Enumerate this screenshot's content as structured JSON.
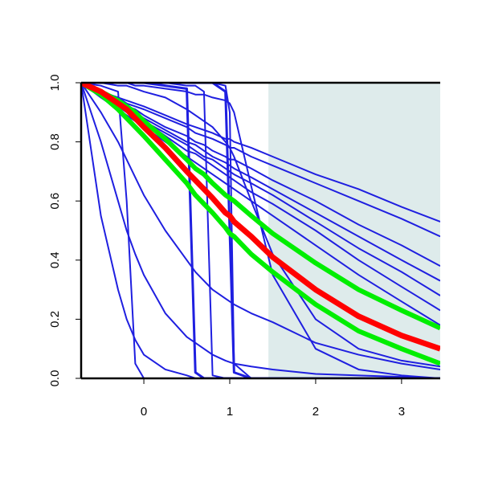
{
  "chart_data": {
    "type": "line",
    "x": [
      -0.73,
      -0.5,
      -0.3,
      -0.2,
      -0.1,
      0,
      0.25,
      0.5,
      0.6,
      0.7,
      0.8,
      0.95,
      1,
      1.05,
      1.25,
      1.5,
      2,
      2.5,
      3,
      3.45
    ],
    "xlim": [
      -0.73,
      3.45
    ],
    "ylim": [
      0,
      1
    ],
    "xticks": [
      0,
      1,
      2,
      3
    ],
    "yticks": [
      {
        "value": 0,
        "label": "0.0"
      },
      0.2,
      0.4,
      0.6,
      0.8,
      {
        "value": 1,
        "label": "1.0"
      }
    ],
    "shade_x": [
      1.45,
      3.45
    ],
    "shade_color": "#deebeb",
    "series": [
      {
        "color": "#1f1fe0",
        "width": 2,
        "values": [
          1,
          0.97,
          0.95,
          0.94,
          0.93,
          0.92,
          0.89,
          0.86,
          0.85,
          0.84,
          0.83,
          0.81,
          0.81,
          0.8,
          0.78,
          0.75,
          0.69,
          0.64,
          0.58,
          0.53
        ]
      },
      {
        "color": "#1f1fe0",
        "width": 2,
        "values": [
          1,
          0.97,
          0.95,
          0.93,
          0.92,
          0.91,
          0.88,
          0.85,
          0.83,
          0.82,
          0.81,
          0.79,
          0.78,
          0.78,
          0.75,
          0.72,
          0.66,
          0.6,
          0.54,
          0.48
        ]
      },
      {
        "color": "#1f1fe0",
        "width": 2,
        "values": [
          1,
          0.97,
          0.94,
          0.92,
          0.91,
          0.89,
          0.85,
          0.82,
          0.8,
          0.79,
          0.77,
          0.75,
          0.74,
          0.74,
          0.71,
          0.67,
          0.6,
          0.52,
          0.45,
          0.38
        ]
      },
      {
        "color": "#1f1fe0",
        "width": 2,
        "values": [
          1,
          0.96,
          0.93,
          0.91,
          0.9,
          0.88,
          0.84,
          0.8,
          0.79,
          0.77,
          0.75,
          0.73,
          0.72,
          0.71,
          0.68,
          0.64,
          0.56,
          0.48,
          0.4,
          0.33
        ]
      },
      {
        "color": "#1f1fe0",
        "width": 2,
        "values": [
          1,
          0.96,
          0.93,
          0.91,
          0.89,
          0.87,
          0.83,
          0.79,
          0.77,
          0.75,
          0.74,
          0.71,
          0.7,
          0.69,
          0.66,
          0.62,
          0.53,
          0.44,
          0.36,
          0.28
        ]
      },
      {
        "color": "#1f1fe0",
        "width": 2,
        "values": [
          1,
          0.96,
          0.92,
          0.9,
          0.88,
          0.87,
          0.82,
          0.77,
          0.76,
          0.74,
          0.72,
          0.69,
          0.68,
          0.67,
          0.63,
          0.59,
          0.5,
          0.4,
          0.31,
          0.23
        ]
      },
      {
        "color": "#1f1fe0",
        "width": 2,
        "values": [
          1,
          0.95,
          0.91,
          0.89,
          0.87,
          0.85,
          0.8,
          0.75,
          0.73,
          0.71,
          0.69,
          0.66,
          0.65,
          0.64,
          0.6,
          0.55,
          0.45,
          0.35,
          0.26,
          0.18
        ]
      },
      {
        "color": "#1f1fe0",
        "width": 2,
        "values": [
          1,
          0.99,
          0.97,
          0.6,
          0.05,
          0,
          0,
          0,
          0,
          0,
          0,
          0,
          0,
          0,
          0,
          0,
          0,
          0,
          0,
          0
        ]
      },
      {
        "color": "#1f1fe0",
        "width": 3,
        "values": [
          1,
          1,
          1,
          1,
          1,
          1,
          0.99,
          0.98,
          0.02,
          0,
          0,
          0,
          0,
          0,
          0,
          0,
          0,
          0,
          0,
          0
        ]
      },
      {
        "color": "#1f1fe0",
        "width": 2,
        "values": [
          1,
          1,
          1,
          1,
          1,
          1,
          1,
          0.99,
          0.99,
          0.97,
          0.01,
          0,
          0,
          0,
          0,
          0,
          0,
          0,
          0,
          0
        ]
      },
      {
        "color": "#1f1fe0",
        "width": 3,
        "values": [
          1,
          1,
          1,
          1,
          1,
          1,
          1,
          1,
          1,
          1,
          1,
          0.97,
          0.5,
          0.02,
          0,
          0,
          0,
          0,
          0,
          0
        ]
      },
      {
        "color": "#1f1fe0",
        "width": 2,
        "values": [
          1,
          1,
          1,
          1,
          1,
          1,
          1,
          1,
          1,
          1,
          1,
          0.99,
          0.9,
          0.05,
          0,
          0,
          0,
          0,
          0,
          0
        ]
      },
      {
        "color": "#1f1fe0",
        "width": 2,
        "values": [
          1,
          1,
          1,
          1,
          0.99,
          0.99,
          0.98,
          0.97,
          0.96,
          0.96,
          0.95,
          0.94,
          0.93,
          0.9,
          0.65,
          0.35,
          0.1,
          0.03,
          0.01,
          0
        ]
      },
      {
        "color": "#1f1fe0",
        "width": 2,
        "values": [
          1,
          1,
          0.99,
          0.99,
          0.98,
          0.97,
          0.95,
          0.91,
          0.89,
          0.87,
          0.85,
          0.8,
          0.78,
          0.75,
          0.6,
          0.42,
          0.2,
          0.1,
          0.06,
          0.04
        ]
      },
      {
        "color": "#1f1fe0",
        "width": 2,
        "values": [
          1,
          0.55,
          0.3,
          0.2,
          0.13,
          0.08,
          0.03,
          0.01,
          0,
          0,
          0,
          0,
          0,
          0,
          0,
          0,
          0,
          0,
          0,
          0
        ]
      },
      {
        "color": "#1f1fe0",
        "width": 2,
        "values": [
          1,
          0.8,
          0.6,
          0.5,
          0.42,
          0.35,
          0.22,
          0.14,
          0.12,
          0.1,
          0.08,
          0.06,
          0.055,
          0.05,
          0.04,
          0.03,
          0.015,
          0.01,
          0.005,
          0
        ]
      },
      {
        "color": "#1f1fe0",
        "width": 2,
        "values": [
          1,
          0.9,
          0.8,
          0.74,
          0.68,
          0.62,
          0.5,
          0.4,
          0.36,
          0.33,
          0.3,
          0.27,
          0.26,
          0.25,
          0.22,
          0.19,
          0.12,
          0.08,
          0.05,
          0.03
        ]
      },
      {
        "color": "#00ee00",
        "width": 6,
        "values": [
          1,
          0.97,
          0.94,
          0.92,
          0.9,
          0.87,
          0.81,
          0.74,
          0.71,
          0.69,
          0.66,
          0.62,
          0.61,
          0.6,
          0.55,
          0.49,
          0.39,
          0.3,
          0.23,
          0.17
        ]
      },
      {
        "color": "#00ee00",
        "width": 6,
        "values": [
          1,
          0.96,
          0.91,
          0.88,
          0.85,
          0.82,
          0.74,
          0.66,
          0.62,
          0.59,
          0.56,
          0.51,
          0.49,
          0.48,
          0.42,
          0.36,
          0.25,
          0.16,
          0.1,
          0.05
        ]
      },
      {
        "color": "#ff0000",
        "width": 7,
        "values": [
          1,
          0.97,
          0.93,
          0.91,
          0.88,
          0.85,
          0.78,
          0.7,
          0.67,
          0.64,
          0.61,
          0.56,
          0.55,
          0.53,
          0.48,
          0.41,
          0.3,
          0.21,
          0.145,
          0.1
        ]
      }
    ]
  }
}
